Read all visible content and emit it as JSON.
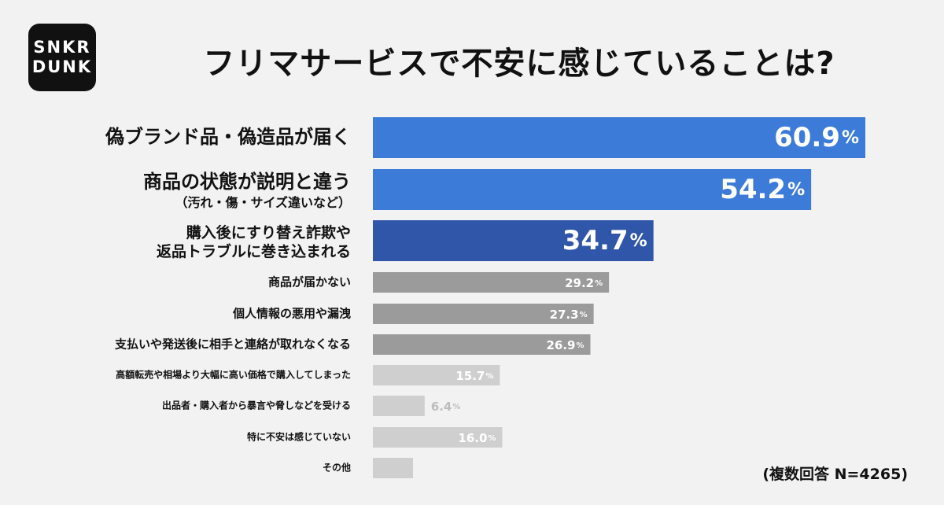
{
  "logo": {
    "line1": "SNKR",
    "line2": "DUNK"
  },
  "title": "フリマサービスで不安に感じていることは?",
  "note": "(複数回答 N=4265)",
  "colors": {
    "top": "#3d7bd8",
    "third": "#2f56a8",
    "mid": "#9b9b9b",
    "light": "#cfcfcf",
    "lightLabel": "#bdbdbd"
  },
  "chart_data": {
    "type": "bar",
    "orientation": "horizontal",
    "unit": "%",
    "xlim": [
      0,
      60.9
    ],
    "categories": [
      [
        "偽ブランド品・偽造品が届く"
      ],
      [
        "商品の状態が説明と違う",
        "（汚れ・傷・サイズ違いなど）"
      ],
      [
        "購入後にすり替え詐欺や",
        "返品トラブルに巻き込まれる"
      ],
      [
        "商品が届かない"
      ],
      [
        "個人情報の悪用や漏洩"
      ],
      [
        "支払いや発送後に相手と連絡が取れなくなる"
      ],
      [
        "高額転売や相場より大幅に高い価格で購入してしまった"
      ],
      [
        "出品者・購入者から暴言や脅しなどを受ける"
      ],
      [
        "特に不安は感じていない"
      ],
      [
        "その他"
      ]
    ],
    "values": [
      60.9,
      54.2,
      34.7,
      29.2,
      27.3,
      26.9,
      15.7,
      6.4,
      16.0,
      null
    ],
    "value_labels": [
      "60.9",
      "54.2",
      "34.7",
      "29.2",
      "27.3",
      "26.9",
      "15.7",
      "6.4",
      "16.0",
      ""
    ],
    "styles": [
      "top",
      "top",
      "third",
      "mid",
      "mid",
      "mid",
      "light",
      "light",
      "light",
      "light"
    ]
  }
}
